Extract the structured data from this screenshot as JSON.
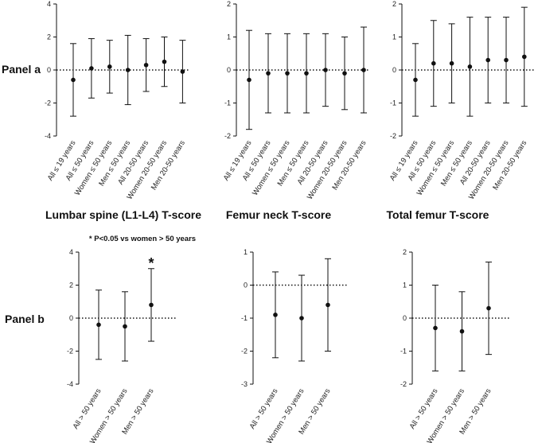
{
  "panels": {
    "panel_a": "Panel a",
    "panel_b": "Panel b"
  },
  "titles": {
    "lumbar": "Lumbar spine (L1-L4) T-score",
    "femur_neck": "Femur neck T-score",
    "total_femur": "Total femur T-score"
  },
  "note": "* P<0.05 vs women > 50 years",
  "colors": {
    "ink": "#111111"
  },
  "chart_data": [
    {
      "id": "a_lumbar",
      "type": "scatter",
      "panel": "Panel a",
      "measure": "Lumbar spine (L1-L4) T-score",
      "ylim": [
        -4,
        4
      ],
      "yticks": [
        -4,
        -2,
        0,
        2,
        4
      ],
      "categories": [
        "All ≤ 19 years",
        "All ≤ 50 years",
        "Women ≤ 50 years",
        "Men ≤ 50 years",
        "All 20-50 years",
        "Women 20-50 years",
        "Men 20-50 years"
      ],
      "values": [
        -0.6,
        0.1,
        0.2,
        0.0,
        0.3,
        0.5,
        -0.1
      ],
      "lower": [
        -2.8,
        -1.7,
        -1.4,
        -2.1,
        -1.3,
        -1.0,
        -2.0
      ],
      "upper": [
        1.6,
        1.9,
        1.8,
        2.1,
        1.9,
        2.0,
        1.8
      ],
      "annotations": []
    },
    {
      "id": "a_neck",
      "type": "scatter",
      "panel": "Panel a",
      "measure": "Femur neck T-score",
      "ylim": [
        -2,
        2
      ],
      "yticks": [
        -2,
        -1,
        0,
        1,
        2
      ],
      "categories": [
        "All ≤ 19 years",
        "All ≤ 50 years",
        "Women ≤ 50 years",
        "Men ≤ 50 years",
        "All 20-50 years",
        "Women 20-50 years",
        "Men 20-50 years"
      ],
      "values": [
        -0.3,
        -0.1,
        -0.1,
        -0.1,
        0.0,
        -0.1,
        0.0
      ],
      "lower": [
        -1.8,
        -1.3,
        -1.3,
        -1.3,
        -1.1,
        -1.2,
        -1.3
      ],
      "upper": [
        1.2,
        1.1,
        1.1,
        1.1,
        1.1,
        1.0,
        1.3
      ],
      "annotations": []
    },
    {
      "id": "a_total",
      "type": "scatter",
      "panel": "Panel a",
      "measure": "Total femur T-score",
      "ylim": [
        -2,
        2
      ],
      "yticks": [
        -2,
        -1,
        0,
        1,
        2
      ],
      "categories": [
        "All ≤ 19 years",
        "All ≤ 50 years",
        "Women ≤ 50 years",
        "Men ≤ 50 years",
        "All 20-50 years",
        "Women 20-50 years",
        "Men 20-50 years"
      ],
      "values": [
        -0.3,
        0.2,
        0.2,
        0.1,
        0.3,
        0.3,
        0.4
      ],
      "lower": [
        -1.4,
        -1.1,
        -1.0,
        -1.4,
        -1.0,
        -1.0,
        -1.1
      ],
      "upper": [
        0.8,
        1.5,
        1.4,
        1.6,
        1.6,
        1.6,
        1.9
      ],
      "annotations": []
    },
    {
      "id": "b_lumbar",
      "type": "scatter",
      "panel": "Panel b",
      "measure": "Lumbar spine (L1-L4) T-score",
      "ylim": [
        -4,
        4
      ],
      "yticks": [
        -4,
        -2,
        0,
        2,
        4
      ],
      "categories": [
        "All > 50 years",
        "Women > 50 years",
        "Men > 50 years"
      ],
      "values": [
        -0.4,
        -0.5,
        0.8
      ],
      "lower": [
        -2.5,
        -2.6,
        -1.4
      ],
      "upper": [
        1.7,
        1.6,
        3.0
      ],
      "annotations": [
        {
          "index": 2,
          "text": "*"
        }
      ]
    },
    {
      "id": "b_neck",
      "type": "scatter",
      "panel": "Panel b",
      "measure": "Femur neck T-score",
      "ylim": [
        -3,
        1
      ],
      "yticks": [
        -3,
        -2,
        -1,
        0,
        1
      ],
      "categories": [
        "All > 50 years",
        "Women > 50 years",
        "Men > 50 years"
      ],
      "values": [
        -0.9,
        -1.0,
        -0.6
      ],
      "lower": [
        -2.2,
        -2.3,
        -2.0
      ],
      "upper": [
        0.4,
        0.3,
        0.8
      ],
      "annotations": []
    },
    {
      "id": "b_total",
      "type": "scatter",
      "panel": "Panel b",
      "measure": "Total femur T-score",
      "ylim": [
        -2,
        2
      ],
      "yticks": [
        -2,
        -1,
        0,
        1,
        2
      ],
      "categories": [
        "All > 50 years",
        "Women > 50 years",
        "Men > 50 years"
      ],
      "values": [
        -0.3,
        -0.4,
        0.3
      ],
      "lower": [
        -1.6,
        -1.6,
        -1.1
      ],
      "upper": [
        1.0,
        0.8,
        1.7
      ],
      "annotations": []
    }
  ]
}
